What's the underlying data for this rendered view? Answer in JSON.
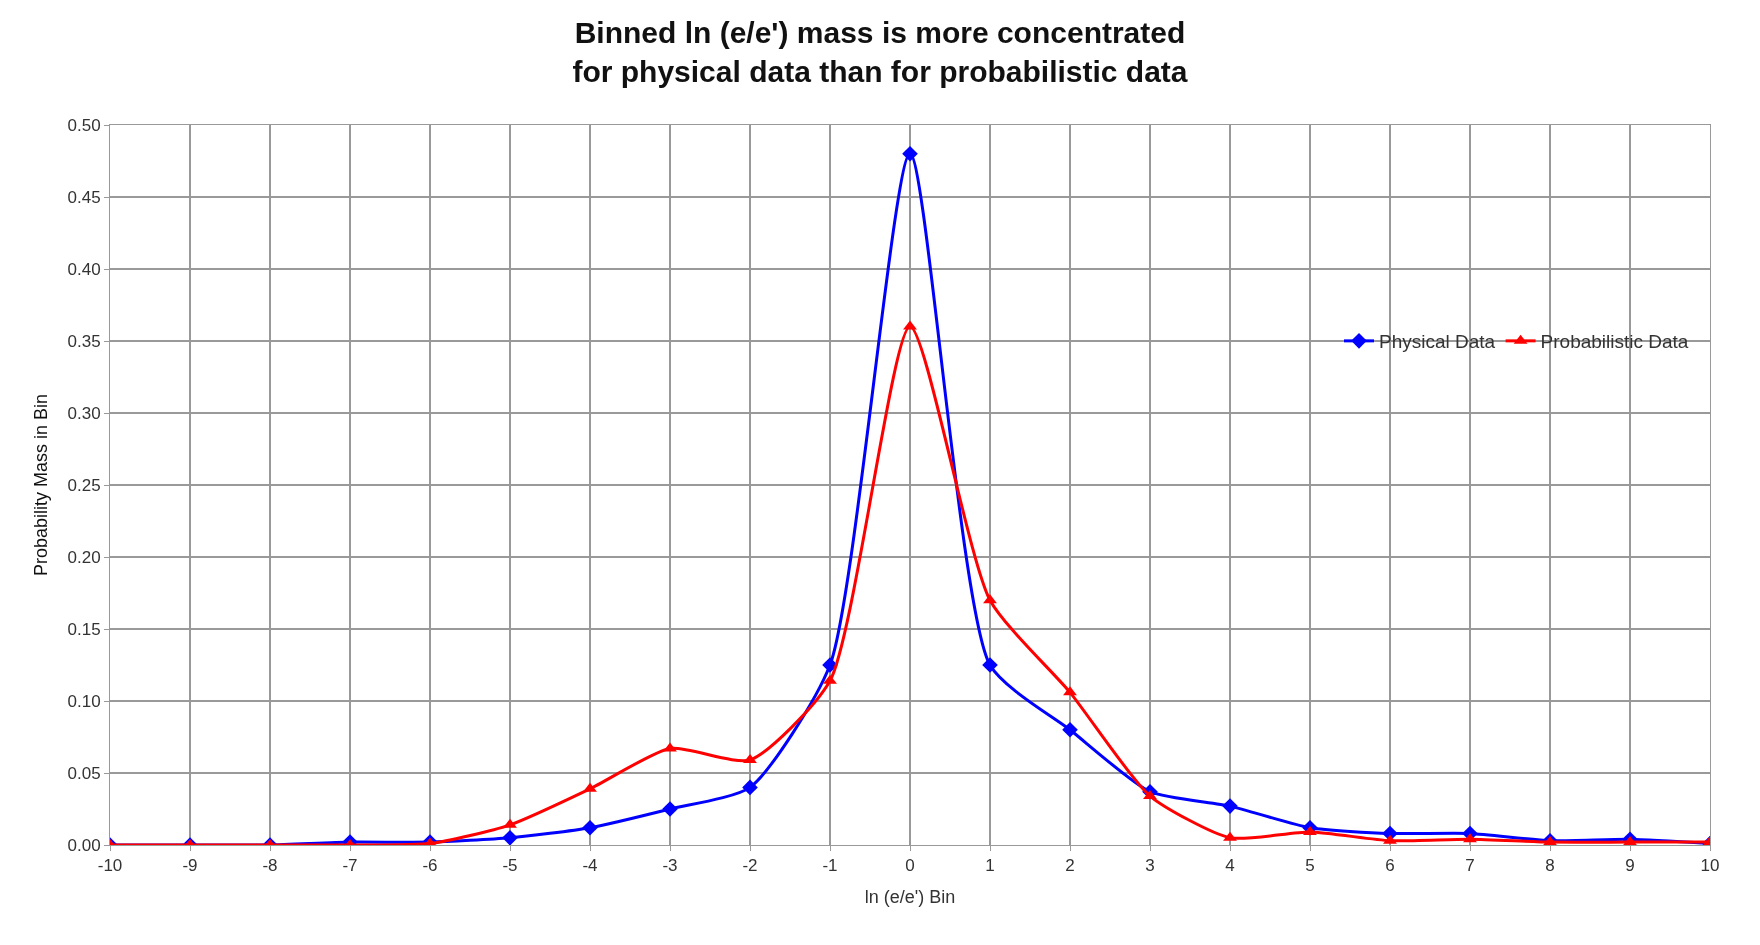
{
  "chart_data": {
    "type": "line",
    "title": "Binned ln (e/e') mass is more concentrated\nfor physical data than for probabilistic data",
    "xlabel": "ln (e/e') Bin",
    "ylabel": "Probability Mass in Bin",
    "x": [
      -10,
      -9,
      -8,
      -7,
      -6,
      -5,
      -4,
      -3,
      -2,
      -1,
      0,
      1,
      2,
      3,
      4,
      5,
      6,
      7,
      8,
      9,
      10
    ],
    "series": [
      {
        "name": "Physical Data",
        "color": "#0000ff",
        "marker": "diamond",
        "values": [
          0,
          0,
          0,
          0.002,
          0.002,
          0.005,
          0.012,
          0.025,
          0.04,
          0.125,
          0.48,
          0.125,
          0.08,
          0.037,
          0.027,
          0.012,
          0.008,
          0.008,
          0.003,
          0.004,
          0.001
        ]
      },
      {
        "name": "Probabilistic Data",
        "color": "#ff0000",
        "marker": "triangle",
        "values": [
          0,
          0,
          0,
          0,
          0.001,
          0.014,
          0.039,
          0.067,
          0.059,
          0.114,
          0.36,
          0.17,
          0.106,
          0.034,
          0.005,
          0.009,
          0.003,
          0.004,
          0.002,
          0.002,
          0.002
        ]
      }
    ],
    "xlim": [
      -10,
      10
    ],
    "xticks": [
      -10,
      -9,
      -8,
      -7,
      -6,
      -5,
      -4,
      -3,
      -2,
      -1,
      0,
      1,
      2,
      3,
      4,
      5,
      6,
      7,
      8,
      9,
      10
    ],
    "ylim": [
      0,
      0.5
    ],
    "yticks": [
      {
        "value": 0,
        "label": "0.00"
      },
      {
        "value": 0.05,
        "label": "0.05"
      },
      {
        "value": 0.1,
        "label": "0.10"
      },
      {
        "value": 0.15,
        "label": "0.15"
      },
      {
        "value": 0.2,
        "label": "0.20"
      },
      {
        "value": 0.25,
        "label": "0.25"
      },
      {
        "value": 0.3,
        "label": "0.30"
      },
      {
        "value": 0.35,
        "label": "0.35"
      },
      {
        "value": 0.4,
        "label": "0.40"
      },
      {
        "value": 0.45,
        "label": "0.45"
      },
      {
        "value": 0.5,
        "label": "0.50"
      }
    ],
    "grid": true,
    "legend": "top right",
    "line_style": "solid"
  }
}
